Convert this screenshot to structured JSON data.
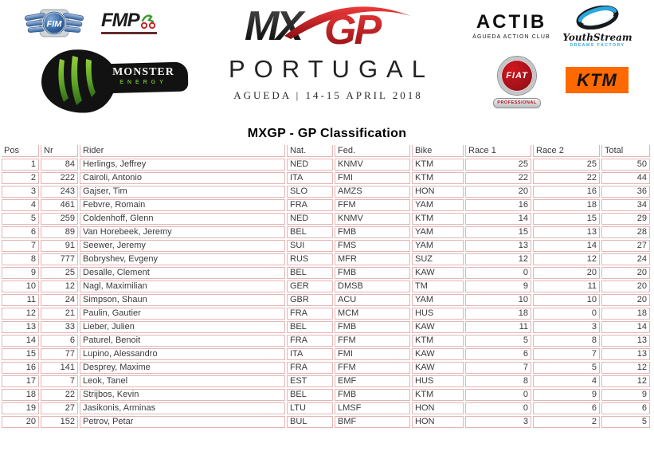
{
  "header": {
    "logos": {
      "fim": "FIM",
      "fmp": "FMP",
      "monster": {
        "line1": "MONSTER",
        "line2": "ENERGY"
      },
      "mxgp": {
        "mx": "MX",
        "gp": "GP"
      },
      "actib": {
        "name": "ACTIB",
        "sub": "ÁGUEDA ACTION CLUB"
      },
      "youthstream": {
        "name": "YouthStream",
        "sub": "DREAMS FACTORY"
      },
      "fiat": {
        "name": "FIAT",
        "sub": "PROFESSIONAL"
      },
      "ktm": "KTM"
    },
    "event": {
      "country": "PORTUGAL",
      "location_date": "AGUEDA | 14-15 APRIL 2018"
    }
  },
  "title": "MXGP - GP Classification",
  "table": {
    "columns": [
      "Pos",
      "Nr",
      "Rider",
      "Nat.",
      "Fed.",
      "Bike",
      "Race 1",
      "Race 2",
      "Total"
    ],
    "align": [
      "right",
      "right",
      "left",
      "left",
      "left",
      "left",
      "right",
      "right",
      "right"
    ],
    "rows": [
      [
        "1",
        "84",
        "Herlings, Jeffrey",
        "NED",
        "KNMV",
        "KTM",
        "25",
        "25",
        "50"
      ],
      [
        "2",
        "222",
        "Cairoli, Antonio",
        "ITA",
        "FMI",
        "KTM",
        "22",
        "22",
        "44"
      ],
      [
        "3",
        "243",
        "Gajser, Tim",
        "SLO",
        "AMZS",
        "HON",
        "20",
        "16",
        "36"
      ],
      [
        "4",
        "461",
        "Febvre, Romain",
        "FRA",
        "FFM",
        "YAM",
        "16",
        "18",
        "34"
      ],
      [
        "5",
        "259",
        "Coldenhoff, Glenn",
        "NED",
        "KNMV",
        "KTM",
        "14",
        "15",
        "29"
      ],
      [
        "6",
        "89",
        "Van Horebeek, Jeremy",
        "BEL",
        "FMB",
        "YAM",
        "15",
        "13",
        "28"
      ],
      [
        "7",
        "91",
        "Seewer, Jeremy",
        "SUI",
        "FMS",
        "YAM",
        "13",
        "14",
        "27"
      ],
      [
        "8",
        "777",
        "Bobryshev, Evgeny",
        "RUS",
        "MFR",
        "SUZ",
        "12",
        "12",
        "24"
      ],
      [
        "9",
        "25",
        "Desalle, Clement",
        "BEL",
        "FMB",
        "KAW",
        "0",
        "20",
        "20"
      ],
      [
        "10",
        "12",
        "Nagl, Maximilian",
        "GER",
        "DMSB",
        "TM",
        "9",
        "11",
        "20"
      ],
      [
        "11",
        "24",
        "Simpson, Shaun",
        "GBR",
        "ACU",
        "YAM",
        "10",
        "10",
        "20"
      ],
      [
        "12",
        "21",
        "Paulin, Gautier",
        "FRA",
        "MCM",
        "HUS",
        "18",
        "0",
        "18"
      ],
      [
        "13",
        "33",
        "Lieber, Julien",
        "BEL",
        "FMB",
        "KAW",
        "11",
        "3",
        "14"
      ],
      [
        "14",
        "6",
        "Paturel, Benoit",
        "FRA",
        "FFM",
        "KTM",
        "5",
        "8",
        "13"
      ],
      [
        "15",
        "77",
        "Lupino, Alessandro",
        "ITA",
        "FMI",
        "KAW",
        "6",
        "7",
        "13"
      ],
      [
        "16",
        "141",
        "Desprey, Maxime",
        "FRA",
        "FFM",
        "KAW",
        "7",
        "5",
        "12"
      ],
      [
        "17",
        "7",
        "Leok, Tanel",
        "EST",
        "EMF",
        "HUS",
        "8",
        "4",
        "12"
      ],
      [
        "18",
        "22",
        "Strijbos, Kevin",
        "BEL",
        "FMB",
        "KTM",
        "0",
        "9",
        "9"
      ],
      [
        "19",
        "27",
        "Jasikonis, Arminas",
        "LTU",
        "LMSF",
        "HON",
        "0",
        "6",
        "6"
      ],
      [
        "20",
        "152",
        "Petrov, Petar",
        "BUL",
        "BMF",
        "HON",
        "3",
        "2",
        "5"
      ]
    ]
  },
  "colors": {
    "table_border": "#E3B5B5",
    "table_text": "#3A3A3A",
    "mxgp_red": "#C8151D",
    "ktm_orange": "#FF6900",
    "monster_green": "#6FB32B",
    "fim_blue": "#30619E",
    "fiat_red": "#A8121A",
    "youthstream_blue": "#29A8DF"
  }
}
